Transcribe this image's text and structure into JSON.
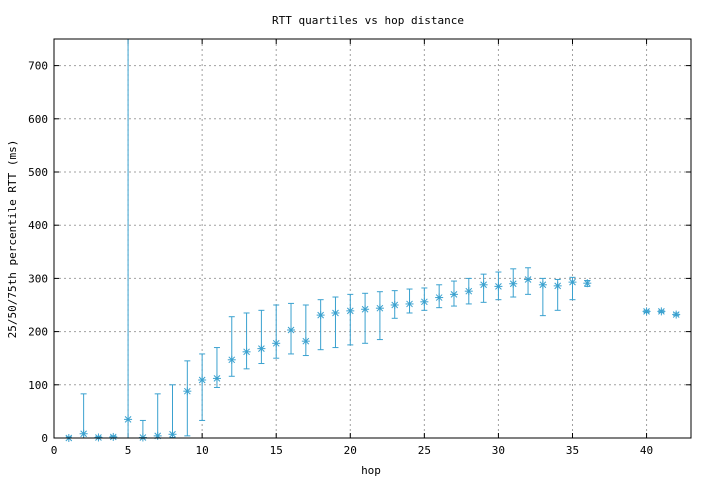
{
  "chart_data": {
    "type": "scatter",
    "title": "RTT quartiles vs hop distance",
    "xlabel": "hop",
    "ylabel": "25/50/75th percentile RTT (ms)",
    "xlim": [
      0,
      43
    ],
    "ylim": [
      0,
      750
    ],
    "xticks": [
      0,
      5,
      10,
      15,
      20,
      25,
      30,
      35,
      40
    ],
    "yticks": [
      0,
      100,
      200,
      300,
      400,
      500,
      600,
      700
    ],
    "grid": true,
    "series_color": "#3aa1cf",
    "marker": "asterisk",
    "error_bars": true,
    "points": [
      {
        "x": 1,
        "low": 0,
        "median": 0,
        "high": 2
      },
      {
        "x": 2,
        "low": 0,
        "median": 8,
        "high": 83
      },
      {
        "x": 3,
        "low": 0,
        "median": 1,
        "high": 3
      },
      {
        "x": 4,
        "low": 0,
        "median": 2,
        "high": 4
      },
      {
        "x": 5,
        "low": 0,
        "median": 35,
        "high": 750
      },
      {
        "x": 6,
        "low": 0,
        "median": 1,
        "high": 33
      },
      {
        "x": 7,
        "low": 0,
        "median": 4,
        "high": 83
      },
      {
        "x": 8,
        "low": 1,
        "median": 7,
        "high": 100
      },
      {
        "x": 9,
        "low": 4,
        "median": 88,
        "high": 145
      },
      {
        "x": 10,
        "low": 33,
        "median": 109,
        "high": 158
      },
      {
        "x": 11,
        "low": 95,
        "median": 112,
        "high": 170
      },
      {
        "x": 12,
        "low": 116,
        "median": 147,
        "high": 228
      },
      {
        "x": 13,
        "low": 130,
        "median": 162,
        "high": 235
      },
      {
        "x": 14,
        "low": 140,
        "median": 168,
        "high": 240
      },
      {
        "x": 15,
        "low": 150,
        "median": 178,
        "high": 250
      },
      {
        "x": 16,
        "low": 158,
        "median": 203,
        "high": 253
      },
      {
        "x": 17,
        "low": 155,
        "median": 182,
        "high": 250
      },
      {
        "x": 18,
        "low": 166,
        "median": 231,
        "high": 260
      },
      {
        "x": 19,
        "low": 170,
        "median": 235,
        "high": 265
      },
      {
        "x": 20,
        "low": 175,
        "median": 239,
        "high": 270
      },
      {
        "x": 21,
        "low": 178,
        "median": 242,
        "high": 272
      },
      {
        "x": 22,
        "low": 185,
        "median": 244,
        "high": 275
      },
      {
        "x": 23,
        "low": 225,
        "median": 250,
        "high": 277
      },
      {
        "x": 24,
        "low": 235,
        "median": 252,
        "high": 280
      },
      {
        "x": 25,
        "low": 240,
        "median": 256,
        "high": 282
      },
      {
        "x": 26,
        "low": 245,
        "median": 264,
        "high": 288
      },
      {
        "x": 27,
        "low": 248,
        "median": 270,
        "high": 295
      },
      {
        "x": 28,
        "low": 252,
        "median": 276,
        "high": 300
      },
      {
        "x": 29,
        "low": 255,
        "median": 288,
        "high": 308
      },
      {
        "x": 30,
        "low": 260,
        "median": 285,
        "high": 312
      },
      {
        "x": 31,
        "low": 265,
        "median": 290,
        "high": 318
      },
      {
        "x": 32,
        "low": 270,
        "median": 298,
        "high": 320
      },
      {
        "x": 33,
        "low": 230,
        "median": 288,
        "high": 300
      },
      {
        "x": 34,
        "low": 240,
        "median": 286,
        "high": 298
      },
      {
        "x": 35,
        "low": 260,
        "median": 293,
        "high": 302
      },
      {
        "x": 36,
        "low": 285,
        "median": 291,
        "high": 296
      },
      {
        "x": 40,
        "low": 236,
        "median": 238,
        "high": 240
      },
      {
        "x": 41,
        "low": 236,
        "median": 238,
        "high": 240
      },
      {
        "x": 42,
        "low": 230,
        "median": 232,
        "high": 235
      }
    ]
  }
}
